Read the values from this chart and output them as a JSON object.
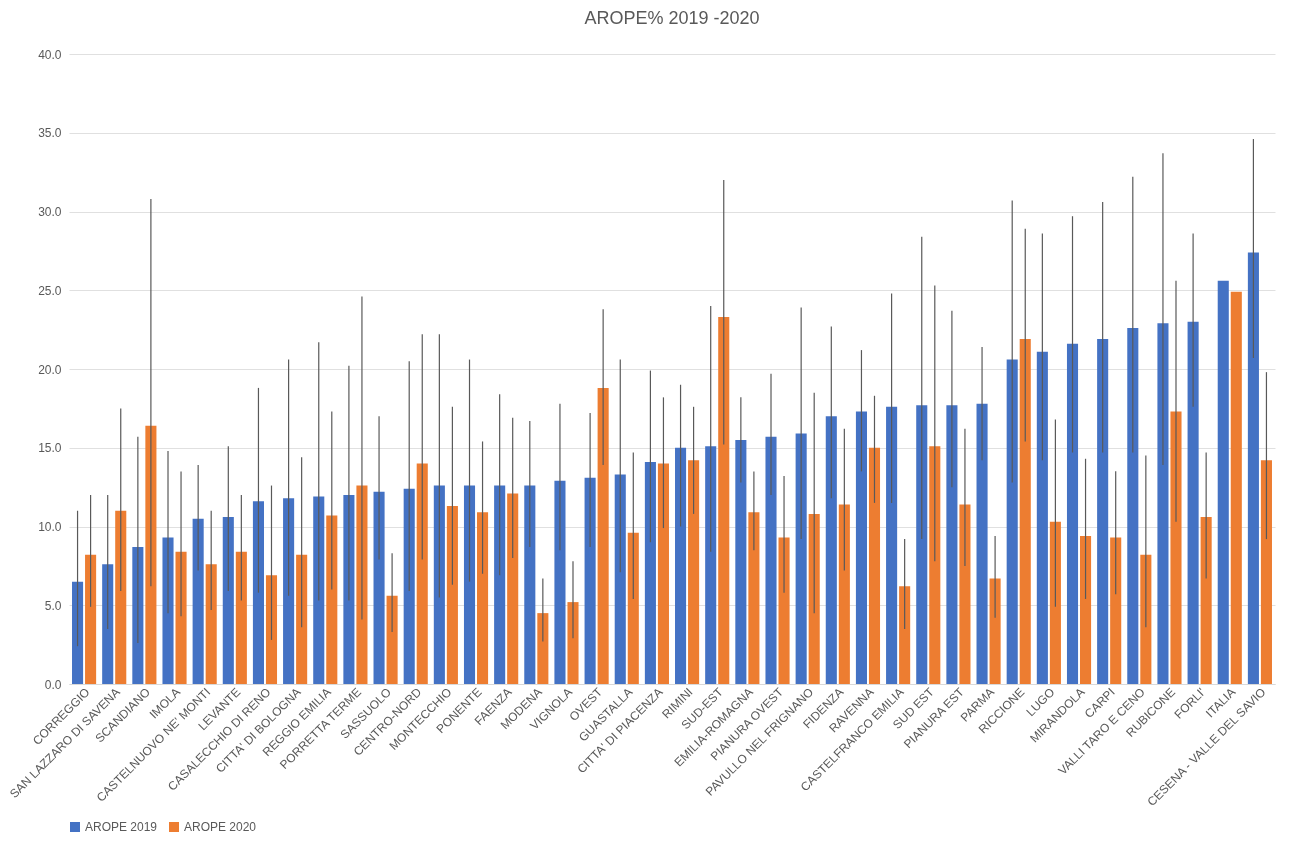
{
  "chart_data": {
    "type": "bar",
    "title": "AROPE% 2019 -2020",
    "categories": [
      "CORREGGIO",
      "SAN LAZZARO DI SAVENA",
      "SCANDIANO",
      "IMOLA",
      "CASTELNUOVO NE' MONTI",
      "LEVANTE",
      "CASALECCHIO DI RENO",
      "CITTA' DI BOLOGNA",
      "REGGIO EMILIA",
      "PORRETTA TERME",
      "SASSUOLO",
      "CENTRO-NORD",
      "MONTECCHIO",
      "PONENTE",
      "FAENZA",
      "MODENA",
      "VIGNOLA",
      "OVEST",
      "GUASTALLA",
      "CITTA' DI PIACENZA",
      "RIMINI",
      "SUD-EST",
      "EMILIA-ROMAGNA",
      "PIANURA OVEST",
      "PAVULLO NEL FRIGNANO",
      "FIDENZA",
      "RAVENNA",
      "CASTELFRANCO EMILIA",
      "SUD EST",
      "PIANURA EST",
      "PARMA",
      "RICCIONE",
      "LUGO",
      "MIRANDOLA",
      "CARPI",
      "VALLI TARO E CENO",
      "RUBICONE",
      "FORLI'",
      "ITALIA",
      "CESENA - VALLE DEL SAVIO"
    ],
    "series": [
      {
        "name": "AROPE 2019",
        "color": "#4472c4",
        "values": [
          6.5,
          7.6,
          8.7,
          9.3,
          10.5,
          10.6,
          11.6,
          11.8,
          11.9,
          12.0,
          12.2,
          12.4,
          12.6,
          12.6,
          12.6,
          12.6,
          12.9,
          13.1,
          13.3,
          14.1,
          15.0,
          15.1,
          15.5,
          15.7,
          15.9,
          17.0,
          17.3,
          17.6,
          17.7,
          17.7,
          17.8,
          20.6,
          21.1,
          21.6,
          21.9,
          22.6,
          22.9,
          23.0,
          25.6,
          27.4
        ],
        "errors": [
          [
            2.4,
            11.0
          ],
          [
            3.5,
            12.0
          ],
          [
            2.6,
            15.7
          ],
          [
            4.5,
            14.8
          ],
          [
            7.2,
            13.9
          ],
          [
            5.9,
            15.1
          ],
          [
            5.8,
            18.8
          ],
          [
            5.6,
            20.6
          ],
          [
            5.3,
            21.7
          ],
          [
            5.3,
            20.2
          ],
          [
            7.9,
            17.0
          ],
          [
            5.9,
            20.5
          ],
          [
            5.5,
            22.2
          ],
          [
            6.5,
            20.6
          ],
          [
            6.9,
            18.4
          ],
          [
            8.7,
            16.7
          ],
          [
            8.5,
            17.8
          ],
          [
            8.7,
            17.2
          ],
          [
            7.1,
            20.6
          ],
          [
            9.0,
            19.9
          ],
          [
            10.0,
            19.0
          ],
          [
            8.4,
            24.0
          ],
          [
            12.8,
            18.2
          ],
          [
            12.0,
            19.7
          ],
          [
            9.2,
            23.9
          ],
          [
            11.8,
            22.7
          ],
          [
            13.5,
            21.2
          ],
          [
            11.5,
            24.8
          ],
          [
            9.2,
            28.4
          ],
          [
            12.5,
            23.7
          ],
          [
            14.2,
            21.4
          ],
          [
            12.8,
            30.7
          ],
          [
            14.2,
            28.6
          ],
          [
            14.7,
            29.7
          ],
          [
            14.7,
            30.6
          ],
          [
            14.7,
            32.2
          ],
          [
            13.9,
            33.7
          ],
          [
            17.6,
            28.6
          ],
          null,
          [
            20.7,
            34.6
          ]
        ]
      },
      {
        "name": "AROPE 2020",
        "color": "#ed7d31",
        "values": [
          8.2,
          11.0,
          16.4,
          8.4,
          7.6,
          8.4,
          6.9,
          8.2,
          10.7,
          12.6,
          5.6,
          14.0,
          11.3,
          10.9,
          12.1,
          4.5,
          5.2,
          18.8,
          9.6,
          14.0,
          14.2,
          23.3,
          10.9,
          9.3,
          10.8,
          11.4,
          15.0,
          6.2,
          15.1,
          11.4,
          6.7,
          21.9,
          10.3,
          9.4,
          9.3,
          8.2,
          17.3,
          10.6,
          24.9,
          14.2
        ],
        "errors": [
          [
            4.9,
            12.0
          ],
          [
            5.9,
            17.5
          ],
          [
            6.2,
            30.8
          ],
          [
            4.3,
            13.5
          ],
          [
            4.7,
            11.0
          ],
          [
            5.3,
            12.0
          ],
          [
            2.8,
            12.6
          ],
          [
            3.6,
            14.4
          ],
          [
            6.0,
            17.3
          ],
          [
            4.1,
            24.6
          ],
          [
            3.3,
            8.3
          ],
          [
            7.9,
            22.2
          ],
          [
            6.3,
            17.6
          ],
          [
            7.0,
            15.4
          ],
          [
            8.0,
            16.9
          ],
          [
            2.7,
            6.7
          ],
          [
            2.9,
            7.8
          ],
          [
            13.9,
            23.8
          ],
          [
            5.4,
            14.7
          ],
          [
            9.9,
            18.2
          ],
          [
            10.8,
            17.6
          ],
          [
            15.2,
            32.0
          ],
          [
            8.5,
            13.5
          ],
          [
            5.8,
            13.2
          ],
          [
            4.5,
            18.5
          ],
          [
            7.2,
            16.2
          ],
          [
            11.5,
            18.3
          ],
          [
            3.5,
            9.2
          ],
          [
            7.8,
            25.3
          ],
          [
            7.5,
            16.2
          ],
          [
            4.2,
            9.4
          ],
          [
            15.4,
            28.9
          ],
          [
            4.9,
            16.8
          ],
          [
            5.4,
            14.3
          ],
          [
            5.7,
            13.5
          ],
          [
            3.6,
            14.5
          ],
          [
            10.3,
            25.6
          ],
          [
            6.7,
            14.7
          ],
          null,
          [
            9.2,
            19.8
          ]
        ]
      }
    ],
    "ylim": [
      0,
      40
    ],
    "yticks": [
      {
        "value": 0,
        "label": "0.0"
      },
      {
        "value": 5,
        "label": "5.0"
      },
      {
        "value": 10,
        "label": "10.0"
      },
      {
        "value": 15,
        "label": "15.0"
      },
      {
        "value": 20,
        "label": "20.0"
      },
      {
        "value": 25,
        "label": "25.0"
      },
      {
        "value": 30,
        "label": "30.0"
      },
      {
        "value": 35,
        "label": "35.0"
      },
      {
        "value": 40,
        "label": "40.0"
      }
    ],
    "grid": "y",
    "legend": "bottom"
  }
}
